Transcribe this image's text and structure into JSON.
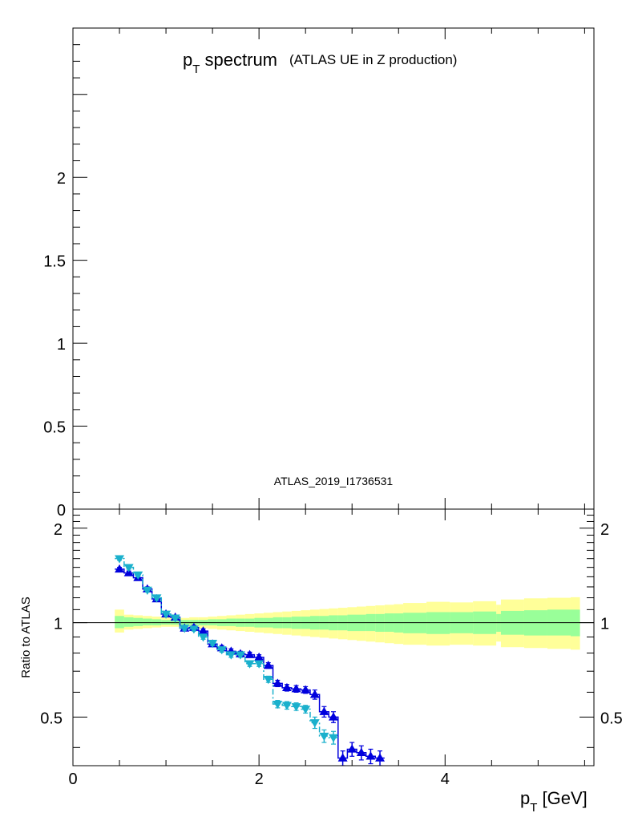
{
  "chart_data": [
    {
      "type": "line",
      "title_main": "p",
      "title_sub": "T",
      "title_rest": " spectrum",
      "title_note": "(ATLAS UE in Z production)",
      "annotation": "ATLAS_2019_I1736531",
      "ylim": [
        0,
        2.9
      ],
      "yticks": [
        "0",
        "0.5",
        "1",
        "1.5",
        "2"
      ],
      "ytick_values": [
        0,
        0.5,
        1,
        1.5,
        2
      ],
      "series": []
    },
    {
      "type": "line",
      "ylabel": "Ratio to ATLAS",
      "xlabel_main": "p",
      "xlabel_sub": "T",
      "xlabel_rest": " [GeV]",
      "x_range": [
        0,
        5.6
      ],
      "ylim": [
        0.35,
        2.3
      ],
      "y_scale": "log",
      "xticks": [
        "0",
        "2",
        "4"
      ],
      "xtick_values": [
        0,
        2,
        4
      ],
      "yticks": [
        "0.5",
        "1",
        "2"
      ],
      "ytick_values": [
        0.5,
        1,
        2
      ],
      "reference_line": 1,
      "bands": {
        "colors": {
          "inner": "#99ff99",
          "outer": "#ffff99"
        },
        "bins": [
          {
            "x0": 0.45,
            "x1": 0.55,
            "inner": [
              0.96,
              1.05
            ],
            "outer": [
              0.93,
              1.1
            ]
          },
          {
            "x0": 0.55,
            "x1": 0.65,
            "inner": [
              0.97,
              1.04
            ],
            "outer": [
              0.95,
              1.06
            ]
          },
          {
            "x0": 0.65,
            "x1": 0.75,
            "inner": [
              0.975,
              1.035
            ],
            "outer": [
              0.955,
              1.055
            ]
          },
          {
            "x0": 0.75,
            "x1": 0.85,
            "inner": [
              0.98,
              1.03
            ],
            "outer": [
              0.96,
              1.05
            ]
          },
          {
            "x0": 0.85,
            "x1": 0.95,
            "inner": [
              0.98,
              1.025
            ],
            "outer": [
              0.965,
              1.045
            ]
          },
          {
            "x0": 0.95,
            "x1": 1.05,
            "inner": [
              0.985,
              1.02
            ],
            "outer": [
              0.97,
              1.04
            ]
          },
          {
            "x0": 1.05,
            "x1": 1.15,
            "inner": [
              0.985,
              1.02
            ],
            "outer": [
              0.97,
              1.035
            ]
          },
          {
            "x0": 1.15,
            "x1": 1.25,
            "inner": [
              0.985,
              1.02
            ],
            "outer": [
              0.97,
              1.035
            ]
          },
          {
            "x0": 1.25,
            "x1": 1.35,
            "inner": [
              0.985,
              1.02
            ],
            "outer": [
              0.965,
              1.04
            ]
          },
          {
            "x0": 1.35,
            "x1": 1.45,
            "inner": [
              0.98,
              1.02
            ],
            "outer": [
              0.96,
              1.04
            ]
          },
          {
            "x0": 1.45,
            "x1": 1.55,
            "inner": [
              0.98,
              1.025
            ],
            "outer": [
              0.955,
              1.045
            ]
          },
          {
            "x0": 1.55,
            "x1": 1.65,
            "inner": [
              0.975,
              1.025
            ],
            "outer": [
              0.95,
              1.05
            ]
          },
          {
            "x0": 1.65,
            "x1": 1.75,
            "inner": [
              0.975,
              1.03
            ],
            "outer": [
              0.945,
              1.055
            ]
          },
          {
            "x0": 1.75,
            "x1": 1.85,
            "inner": [
              0.97,
              1.03
            ],
            "outer": [
              0.94,
              1.06
            ]
          },
          {
            "x0": 1.85,
            "x1": 1.95,
            "inner": [
              0.97,
              1.03
            ],
            "outer": [
              0.935,
              1.065
            ]
          },
          {
            "x0": 1.95,
            "x1": 2.05,
            "inner": [
              0.965,
              1.035
            ],
            "outer": [
              0.93,
              1.07
            ]
          },
          {
            "x0": 2.05,
            "x1": 2.15,
            "inner": [
              0.965,
              1.035
            ],
            "outer": [
              0.925,
              1.075
            ]
          },
          {
            "x0": 2.15,
            "x1": 2.25,
            "inner": [
              0.96,
              1.04
            ],
            "outer": [
              0.92,
              1.08
            ]
          },
          {
            "x0": 2.25,
            "x1": 2.35,
            "inner": [
              0.96,
              1.04
            ],
            "outer": [
              0.915,
              1.085
            ]
          },
          {
            "x0": 2.35,
            "x1": 2.45,
            "inner": [
              0.955,
              1.045
            ],
            "outer": [
              0.91,
              1.09
            ]
          },
          {
            "x0": 2.45,
            "x1": 2.55,
            "inner": [
              0.955,
              1.045
            ],
            "outer": [
              0.905,
              1.095
            ]
          },
          {
            "x0": 2.55,
            "x1": 2.65,
            "inner": [
              0.95,
              1.05
            ],
            "outer": [
              0.9,
              1.1
            ]
          },
          {
            "x0": 2.65,
            "x1": 2.75,
            "inner": [
              0.95,
              1.05
            ],
            "outer": [
              0.895,
              1.105
            ]
          },
          {
            "x0": 2.75,
            "x1": 2.85,
            "inner": [
              0.945,
              1.055
            ],
            "outer": [
              0.89,
              1.11
            ]
          },
          {
            "x0": 2.85,
            "x1": 2.95,
            "inner": [
              0.945,
              1.055
            ],
            "outer": [
              0.885,
              1.115
            ]
          },
          {
            "x0": 2.95,
            "x1": 3.05,
            "inner": [
              0.94,
              1.06
            ],
            "outer": [
              0.88,
              1.12
            ]
          },
          {
            "x0": 3.05,
            "x1": 3.15,
            "inner": [
              0.94,
              1.06
            ],
            "outer": [
              0.875,
              1.125
            ]
          },
          {
            "x0": 3.15,
            "x1": 3.25,
            "inner": [
              0.94,
              1.065
            ],
            "outer": [
              0.87,
              1.13
            ]
          },
          {
            "x0": 3.25,
            "x1": 3.35,
            "inner": [
              0.935,
              1.065
            ],
            "outer": [
              0.865,
              1.135
            ]
          },
          {
            "x0": 3.35,
            "x1": 3.45,
            "inner": [
              0.935,
              1.07
            ],
            "outer": [
              0.86,
              1.14
            ]
          },
          {
            "x0": 3.45,
            "x1": 3.55,
            "inner": [
              0.93,
              1.07
            ],
            "outer": [
              0.855,
              1.145
            ]
          },
          {
            "x0": 3.55,
            "x1": 3.8,
            "inner": [
              0.925,
              1.075
            ],
            "outer": [
              0.85,
              1.155
            ]
          },
          {
            "x0": 3.8,
            "x1": 4.05,
            "inner": [
              0.92,
              1.08
            ],
            "outer": [
              0.845,
              1.165
            ]
          },
          {
            "x0": 4.05,
            "x1": 4.3,
            "inner": [
              0.925,
              1.08
            ],
            "outer": [
              0.85,
              1.16
            ]
          },
          {
            "x0": 4.3,
            "x1": 4.55,
            "inner": [
              0.92,
              1.085
            ],
            "outer": [
              0.845,
              1.17
            ]
          },
          {
            "x0": 4.55,
            "x1": 4.6,
            "inner": [
              0.935,
              1.065
            ],
            "outer": [
              0.87,
              1.14
            ]
          },
          {
            "x0": 4.6,
            "x1": 4.85,
            "inner": [
              0.915,
              1.09
            ],
            "outer": [
              0.835,
              1.185
            ]
          },
          {
            "x0": 4.85,
            "x1": 5.1,
            "inner": [
              0.91,
              1.095
            ],
            "outer": [
              0.83,
              1.195
            ]
          },
          {
            "x0": 5.1,
            "x1": 5.35,
            "inner": [
              0.91,
              1.1
            ],
            "outer": [
              0.825,
              1.2
            ]
          },
          {
            "x0": 5.35,
            "x1": 5.45,
            "inner": [
              0.905,
              1.1
            ],
            "outer": [
              0.82,
              1.205
            ]
          }
        ]
      },
      "series": [
        {
          "color": "#0000dd",
          "marker": "triangle-up",
          "line": "solid",
          "x": [
            0.5,
            0.6,
            0.7,
            0.8,
            0.9,
            1.0,
            1.1,
            1.2,
            1.3,
            1.4,
            1.5,
            1.6,
            1.7,
            1.8,
            1.9,
            2.0,
            2.1,
            2.2,
            2.3,
            2.4,
            2.5,
            2.6,
            2.7,
            2.8,
            2.9,
            3.0,
            3.1,
            3.2,
            3.3
          ],
          "y": [
            1.48,
            1.44,
            1.39,
            1.28,
            1.19,
            1.065,
            1.04,
            0.96,
            0.965,
            0.94,
            0.855,
            0.83,
            0.81,
            0.795,
            0.79,
            0.775,
            0.73,
            0.64,
            0.62,
            0.615,
            0.61,
            0.59,
            0.52,
            0.5,
            0.37,
            0.395,
            0.385,
            0.375,
            0.37
          ],
          "err": [
            0.02,
            0.02,
            0.02,
            0.02,
            0.02,
            0.015,
            0.015,
            0.015,
            0.015,
            0.015,
            0.015,
            0.015,
            0.015,
            0.015,
            0.015,
            0.015,
            0.015,
            0.015,
            0.015,
            0.015,
            0.015,
            0.02,
            0.02,
            0.02,
            0.02,
            0.02,
            0.02,
            0.02,
            0.02
          ]
        },
        {
          "color": "#1ab0cc",
          "marker": "triangle-down",
          "line": "dashdot",
          "x": [
            0.5,
            0.6,
            0.7,
            0.8,
            0.9,
            1.0,
            1.1,
            1.2,
            1.3,
            1.4,
            1.5,
            1.6,
            1.7,
            1.8,
            1.9,
            2.0,
            2.1,
            2.2,
            2.3,
            2.4,
            2.5,
            2.6,
            2.7,
            2.8
          ],
          "y": [
            1.6,
            1.5,
            1.42,
            1.27,
            1.2,
            1.065,
            1.035,
            0.96,
            0.955,
            0.9,
            0.86,
            0.82,
            0.79,
            0.79,
            0.74,
            0.74,
            0.66,
            0.55,
            0.545,
            0.54,
            0.53,
            0.48,
            0.435,
            0.43
          ],
          "err": [
            0.02,
            0.02,
            0.02,
            0.02,
            0.02,
            0.015,
            0.015,
            0.015,
            0.015,
            0.015,
            0.015,
            0.015,
            0.015,
            0.015,
            0.015,
            0.015,
            0.015,
            0.015,
            0.015,
            0.015,
            0.015,
            0.02,
            0.02,
            0.02
          ]
        }
      ]
    }
  ]
}
